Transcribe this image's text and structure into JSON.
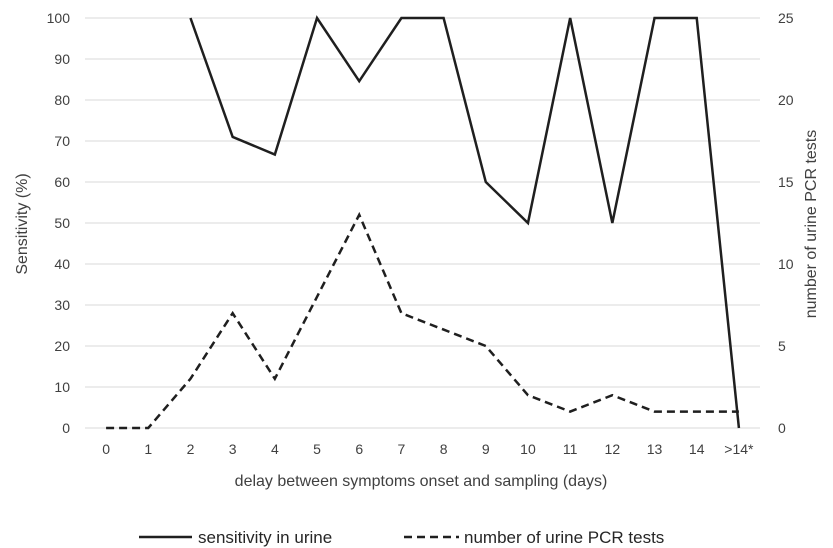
{
  "chart_data": {
    "type": "line",
    "categories": [
      "0",
      "1",
      "2",
      "3",
      "4",
      "5",
      "6",
      "7",
      "8",
      "9",
      "10",
      "11",
      "12",
      "13",
      "14",
      ">14*"
    ],
    "xlabel": "delay between  symptoms onset and sampling (days)",
    "ylabel": "Sensitivity (%)",
    "y2label": "number of urine PCR tests",
    "ylim": [
      0,
      100
    ],
    "y2lim": [
      0,
      25
    ],
    "yticks": [
      0,
      10,
      20,
      30,
      40,
      50,
      60,
      70,
      80,
      90,
      100
    ],
    "y2ticks": [
      0,
      5,
      10,
      15,
      20,
      25
    ],
    "grid": true,
    "legend_position": "bottom",
    "series": [
      {
        "name": "sensitivity in urine",
        "axis": "left",
        "style": "solid",
        "values": [
          null,
          null,
          100,
          71,
          66.7,
          100,
          84.6,
          100,
          100,
          60,
          50,
          100,
          50,
          100,
          100,
          0
        ]
      },
      {
        "name": "number of urine PCR tests",
        "axis": "right",
        "style": "dashed",
        "values": [
          0,
          0,
          3,
          7,
          3,
          8,
          13,
          7,
          6,
          5,
          2,
          1,
          2,
          1,
          1,
          1
        ]
      }
    ]
  },
  "colors": {
    "line": "#1f1f1f",
    "grid": "#d9d9d9",
    "text": "#404040"
  }
}
